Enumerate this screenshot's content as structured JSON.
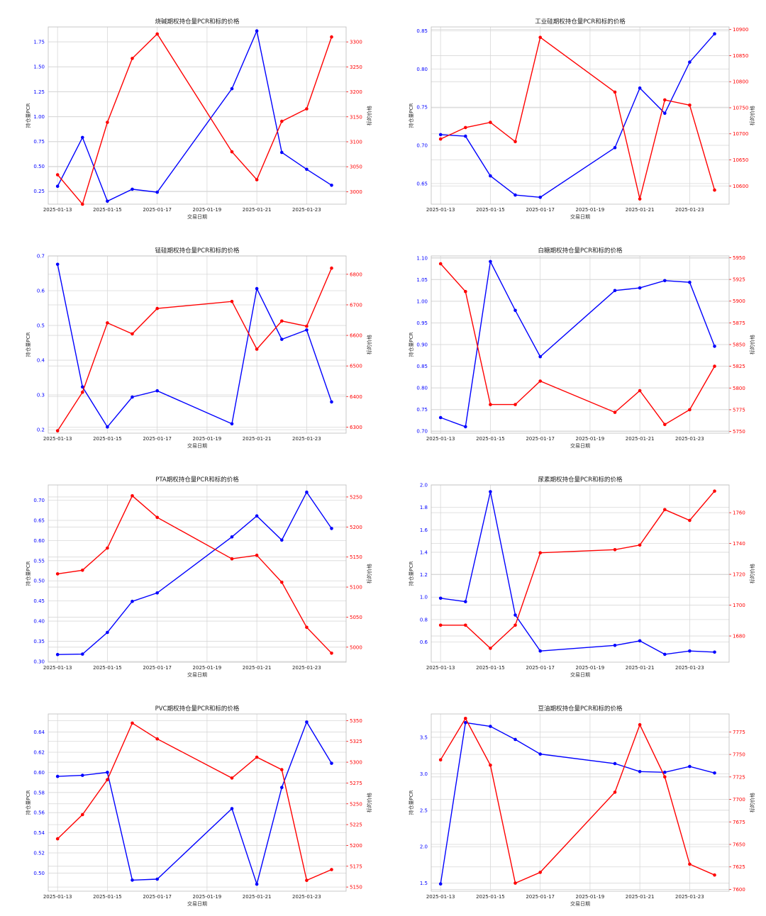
{
  "chart_data": [
    {
      "type": "line",
      "title": "烧碱期权持仓量PCR和标的价格",
      "xlabel": "交易日期",
      "ylabel": "持仓量PCR",
      "ylabel_right": "标的价格",
      "x_ticks": [
        "2025-01-13",
        "2025-01-15",
        "2025-01-17",
        "2025-01-19",
        "2025-01-21",
        "2025-01-23"
      ],
      "x": [
        "2025-01-13",
        "2025-01-14",
        "2025-01-15",
        "2025-01-16",
        "2025-01-17",
        "2025-01-20",
        "2025-01-21",
        "2025-01-22",
        "2025-01-23",
        "2025-01-24"
      ],
      "x_range": [
        "2025-01-12T15:00",
        "2025-01-24T14:00"
      ],
      "y_left": {
        "ylim": [
          0.12,
          1.9
        ],
        "ticks": [
          0.25,
          0.5,
          0.75,
          1.0,
          1.25,
          1.5,
          1.75
        ],
        "labels": [
          "0.25",
          "0.50",
          "0.75",
          "1.00",
          "1.25",
          "1.50",
          "1.75"
        ]
      },
      "y_right": {
        "ylim": [
          2975,
          3330
        ],
        "ticks": [
          3000,
          3050,
          3100,
          3150,
          3200,
          3250,
          3300
        ],
        "labels": [
          "3000",
          "3050",
          "3100",
          "3150",
          "3200",
          "3250",
          "3300"
        ]
      },
      "series": [
        {
          "axis": "left",
          "color": "#0000ff",
          "values": [
            0.3,
            0.79,
            0.15,
            0.27,
            0.24,
            1.28,
            1.86,
            0.64,
            0.47,
            0.31
          ]
        },
        {
          "axis": "right",
          "color": "#ff0000",
          "values": [
            3034,
            2975,
            3139,
            3267,
            3316,
            3080,
            3024,
            3141,
            3166,
            3310
          ]
        }
      ]
    },
    {
      "type": "line",
      "title": "工业硅期权持仓量PCR和标的价格",
      "xlabel": "交易日期",
      "ylabel": "持仓量PCR",
      "ylabel_right": "标的价格",
      "x_ticks": [
        "2025-01-13",
        "2025-01-15",
        "2025-01-17",
        "2025-01-19",
        "2025-01-21",
        "2025-01-23"
      ],
      "x": [
        "2025-01-13",
        "2025-01-14",
        "2025-01-15",
        "2025-01-16",
        "2025-01-17",
        "2025-01-20",
        "2025-01-21",
        "2025-01-22",
        "2025-01-23",
        "2025-01-24"
      ],
      "x_range": [
        "2025-01-12T15:00",
        "2025-01-24T14:00"
      ],
      "y_left": {
        "ylim": [
          0.623,
          0.855
        ],
        "ticks": [
          0.65,
          0.7,
          0.75,
          0.8,
          0.85
        ],
        "labels": [
          "0.65",
          "0.70",
          "0.75",
          "0.80",
          "0.85"
        ]
      },
      "y_right": {
        "ylim": [
          10565,
          10905
        ],
        "ticks": [
          10600,
          10650,
          10700,
          10750,
          10800,
          10850,
          10900
        ],
        "labels": [
          "10600",
          "10650",
          "10700",
          "10750",
          "10800",
          "10850",
          "10900"
        ]
      },
      "series": [
        {
          "axis": "left",
          "color": "#0000ff",
          "values": [
            0.714,
            0.712,
            0.66,
            0.635,
            0.632,
            0.697,
            0.775,
            0.742,
            0.809,
            0.846
          ]
        },
        {
          "axis": "right",
          "color": "#ff0000",
          "values": [
            10690,
            10712,
            10722,
            10685,
            10885,
            10780,
            10575,
            10765,
            10755,
            10592
          ]
        }
      ]
    },
    {
      "type": "line",
      "title": "锰硅期权持仓量PCR和标的价格",
      "xlabel": "交易日期",
      "ylabel": "持仓量PCR",
      "ylabel_right": "标的价格",
      "x_ticks": [
        "2025-01-13",
        "2025-01-15",
        "2025-01-17",
        "2025-01-19",
        "2025-01-21",
        "2025-01-23"
      ],
      "x": [
        "2025-01-13",
        "2025-01-14",
        "2025-01-15",
        "2025-01-16",
        "2025-01-17",
        "2025-01-20",
        "2025-01-21",
        "2025-01-22",
        "2025-01-23",
        "2025-01-24"
      ],
      "x_range": [
        "2025-01-12T15:00",
        "2025-01-24T14:00"
      ],
      "y_left": {
        "ylim": [
          0.19,
          0.7
        ],
        "ticks": [
          0.2,
          0.3,
          0.4,
          0.5,
          0.6,
          0.7
        ],
        "labels": [
          "0.2",
          "0.3",
          "0.4",
          "0.5",
          "0.6",
          "0.7"
        ]
      },
      "y_right": {
        "ylim": [
          6280,
          6860
        ],
        "ticks": [
          6300,
          6400,
          6500,
          6600,
          6700,
          6800
        ],
        "labels": [
          "6300",
          "6400",
          "6500",
          "6600",
          "6700",
          "6800"
        ]
      },
      "series": [
        {
          "axis": "left",
          "color": "#0000ff",
          "values": [
            0.676,
            0.323,
            0.208,
            0.294,
            0.312,
            0.217,
            0.606,
            0.46,
            0.487,
            0.28
          ]
        },
        {
          "axis": "right",
          "color": "#ff0000",
          "values": [
            6288,
            6414,
            6641,
            6605,
            6688,
            6711,
            6555,
            6647,
            6630,
            6820
          ]
        }
      ]
    },
    {
      "type": "line",
      "title": "白糖期权持仓量PCR和标的价格",
      "xlabel": "交易日期",
      "ylabel": "持仓量PCR",
      "ylabel_right": "标的价格",
      "x_ticks": [
        "2025-01-13",
        "2025-01-15",
        "2025-01-17",
        "2025-01-19",
        "2025-01-21",
        "2025-01-23"
      ],
      "x": [
        "2025-01-13",
        "2025-01-14",
        "2025-01-15",
        "2025-01-16",
        "2025-01-17",
        "2025-01-20",
        "2025-01-21",
        "2025-01-22",
        "2025-01-23",
        "2025-01-24"
      ],
      "x_range": [
        "2025-01-12T15:00",
        "2025-01-24T14:00"
      ],
      "y_left": {
        "ylim": [
          0.695,
          1.105
        ],
        "ticks": [
          0.7,
          0.75,
          0.8,
          0.85,
          0.9,
          0.95,
          1.0,
          1.05,
          1.1
        ],
        "labels": [
          "0.70",
          "0.75",
          "0.80",
          "0.85",
          "0.90",
          "0.95",
          "1.00",
          "1.05",
          "1.10"
        ]
      },
      "y_right": {
        "ylim": [
          5748,
          5952
        ],
        "ticks": [
          5750,
          5775,
          5800,
          5825,
          5850,
          5875,
          5900,
          5925,
          5950
        ],
        "labels": [
          "5750",
          "5775",
          "5800",
          "5825",
          "5850",
          "5875",
          "5900",
          "5925",
          "5950"
        ]
      },
      "series": [
        {
          "axis": "left",
          "color": "#0000ff",
          "values": [
            0.731,
            0.71,
            1.092,
            0.979,
            0.872,
            1.025,
            1.031,
            1.048,
            1.044,
            0.896
          ]
        },
        {
          "axis": "right",
          "color": "#ff0000",
          "values": [
            5943,
            5911,
            5781,
            5781,
            5808,
            5772,
            5797,
            5758,
            5775,
            5825
          ]
        }
      ]
    },
    {
      "type": "line",
      "title": "PTA期权持仓量PCR和标的价格",
      "xlabel": "交易日期",
      "ylabel": "持仓量PCR",
      "ylabel_right": "标的价格",
      "x_ticks": [
        "2025-01-13",
        "2025-01-15",
        "2025-01-17",
        "2025-01-19",
        "2025-01-21",
        "2025-01-23"
      ],
      "x": [
        "2025-01-13",
        "2025-01-14",
        "2025-01-15",
        "2025-01-16",
        "2025-01-17",
        "2025-01-20",
        "2025-01-21",
        "2025-01-22",
        "2025-01-23",
        "2025-01-24"
      ],
      "x_range": [
        "2025-01-12T15:00",
        "2025-01-24T14:00"
      ],
      "y_left": {
        "ylim": [
          0.298,
          0.738
        ],
        "ticks": [
          0.3,
          0.35,
          0.4,
          0.45,
          0.5,
          0.55,
          0.6,
          0.65,
          0.7
        ],
        "labels": [
          "0.30",
          "0.35",
          "0.40",
          "0.45",
          "0.50",
          "0.55",
          "0.60",
          "0.65",
          "0.70"
        ]
      },
      "y_right": {
        "ylim": [
          4975,
          5270
        ],
        "ticks": [
          5000,
          5050,
          5100,
          5150,
          5200,
          5250
        ],
        "labels": [
          "5000",
          "5050",
          "5100",
          "5150",
          "5200",
          "5250"
        ]
      },
      "series": [
        {
          "axis": "left",
          "color": "#0000ff",
          "values": [
            0.317,
            0.318,
            0.372,
            0.449,
            0.47,
            0.609,
            0.661,
            0.601,
            0.72,
            0.63
          ]
        },
        {
          "axis": "right",
          "color": "#ff0000",
          "values": [
            5122,
            5128,
            5165,
            5252,
            5216,
            5147,
            5153,
            5108,
            5033,
            4990
          ]
        }
      ]
    },
    {
      "type": "line",
      "title": "尿素期权持仓量PCR和标的价格",
      "xlabel": "交易日期",
      "ylabel": "持仓量PCR",
      "ylabel_right": "标的价格",
      "x_ticks": [
        "2025-01-13",
        "2025-01-15",
        "2025-01-17",
        "2025-01-19",
        "2025-01-21",
        "2025-01-23"
      ],
      "x": [
        "2025-01-13",
        "2025-01-14",
        "2025-01-15",
        "2025-01-16",
        "2025-01-17",
        "2025-01-20",
        "2025-01-21",
        "2025-01-22",
        "2025-01-23",
        "2025-01-24"
      ],
      "x_range": [
        "2025-01-12T15:00",
        "2025-01-24T14:00"
      ],
      "y_left": {
        "ylim": [
          0.42,
          2.0
        ],
        "ticks": [
          0.6,
          0.8,
          1.0,
          1.2,
          1.4,
          1.6,
          1.8,
          2.0
        ],
        "labels": [
          "0.6",
          "0.8",
          "1.0",
          "1.2",
          "1.4",
          "1.6",
          "1.8",
          "2.0"
        ]
      },
      "y_right": {
        "ylim": [
          1663,
          1778
        ],
        "ticks": [
          1680,
          1700,
          1720,
          1740,
          1760
        ],
        "labels": [
          "1680",
          "1700",
          "1720",
          "1740",
          "1760"
        ]
      },
      "series": [
        {
          "axis": "left",
          "color": "#0000ff",
          "values": [
            0.99,
            0.96,
            1.94,
            0.84,
            0.52,
            0.57,
            0.61,
            0.49,
            0.52,
            0.51
          ]
        },
        {
          "axis": "right",
          "color": "#ff0000",
          "values": [
            1687,
            1687,
            1672,
            1687,
            1734,
            1736,
            1739,
            1762,
            1755,
            1774
          ]
        }
      ]
    },
    {
      "type": "line",
      "title": "PVC期权持仓量PCR和标的价格",
      "xlabel": "交易日期",
      "ylabel": "持仓量PCR",
      "ylabel_right": "标的价格",
      "x_ticks": [
        "2025-01-13",
        "2025-01-15",
        "2025-01-17",
        "2025-01-19",
        "2025-01-21",
        "2025-01-23"
      ],
      "x": [
        "2025-01-13",
        "2025-01-14",
        "2025-01-15",
        "2025-01-16",
        "2025-01-17",
        "2025-01-20",
        "2025-01-21",
        "2025-01-22",
        "2025-01-23",
        "2025-01-24"
      ],
      "x_range": [
        "2025-01-12T15:00",
        "2025-01-24T14:00"
      ],
      "y_left": {
        "ylim": [
          0.482,
          0.658
        ],
        "ticks": [
          0.5,
          0.52,
          0.54,
          0.56,
          0.58,
          0.6,
          0.62,
          0.64
        ],
        "labels": [
          "0.50",
          "0.52",
          "0.54",
          "0.56",
          "0.58",
          "0.60",
          "0.62",
          "0.64"
        ]
      },
      "y_right": {
        "ylim": [
          5145,
          5358
        ],
        "ticks": [
          5150,
          5175,
          5200,
          5225,
          5250,
          5275,
          5300,
          5325,
          5350
        ],
        "labels": [
          "5150",
          "5175",
          "5200",
          "5225",
          "5250",
          "5275",
          "5300",
          "5325",
          "5350"
        ]
      },
      "series": [
        {
          "axis": "left",
          "color": "#0000ff",
          "values": [
            0.596,
            0.597,
            0.6,
            0.493,
            0.494,
            0.564,
            0.489,
            0.585,
            0.65,
            0.609
          ]
        },
        {
          "axis": "right",
          "color": "#ff0000",
          "values": [
            5208,
            5237,
            5279,
            5347,
            5328,
            5281,
            5306,
            5291,
            5158,
            5171
          ]
        }
      ]
    },
    {
      "type": "line",
      "title": "豆油期权持仓量PCR和标的价格",
      "xlabel": "交易日期",
      "ylabel": "持仓量PCR",
      "ylabel_right": "标的价格",
      "x_ticks": [
        "2025-01-13",
        "2025-01-15",
        "2025-01-17",
        "2025-01-19",
        "2025-01-21",
        "2025-01-23"
      ],
      "x": [
        "2025-01-13",
        "2025-01-14",
        "2025-01-15",
        "2025-01-16",
        "2025-01-17",
        "2025-01-20",
        "2025-01-21",
        "2025-01-22",
        "2025-01-23",
        "2025-01-24"
      ],
      "x_range": [
        "2025-01-12T15:00",
        "2025-01-24T14:00"
      ],
      "y_left": {
        "ylim": [
          1.39,
          3.82
        ],
        "ticks": [
          1.5,
          2.0,
          2.5,
          3.0,
          3.5
        ],
        "labels": [
          "1.5",
          "2.0",
          "2.5",
          "3.0",
          "3.5"
        ]
      },
      "y_right": {
        "ylim": [
          7598,
          7795
        ],
        "ticks": [
          7600,
          7625,
          7650,
          7675,
          7700,
          7725,
          7750,
          7775
        ],
        "labels": [
          "7600",
          "7625",
          "7650",
          "7675",
          "7700",
          "7725",
          "7750",
          "7775"
        ]
      },
      "series": [
        {
          "axis": "left",
          "color": "#0000ff",
          "values": [
            1.49,
            3.7,
            3.65,
            3.47,
            3.27,
            3.14,
            3.03,
            3.02,
            3.1,
            3.01
          ]
        },
        {
          "axis": "right",
          "color": "#ff0000",
          "values": [
            7744,
            7790,
            7738,
            7607,
            7619,
            7708,
            7783,
            7725,
            7628,
            7616
          ]
        }
      ]
    }
  ]
}
